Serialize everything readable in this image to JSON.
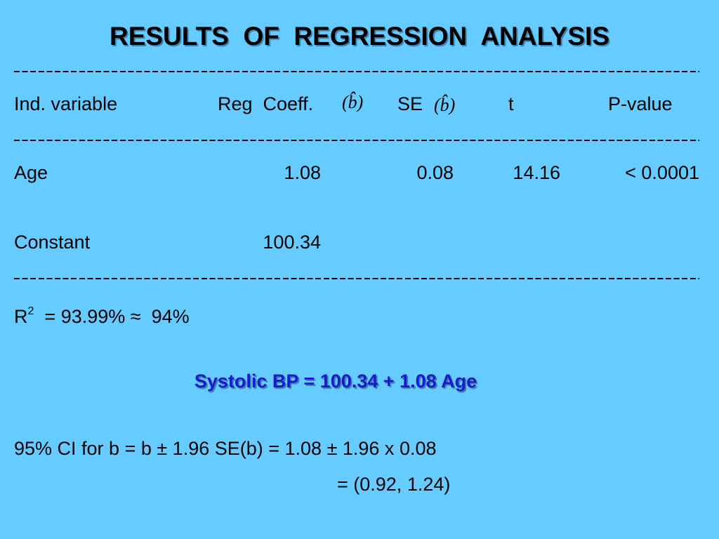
{
  "title": "RESULTS  OF  REGRESSION  ANALYSIS",
  "table": {
    "header": [
      "Ind. variable",
      "Reg  Coeff.",
      "(b̂)",
      "SE",
      "(b̂)",
      "t",
      "P-value"
    ],
    "rows": [
      [
        "Age",
        "1.08",
        "0.08",
        "14.16",
        "< 0.0001"
      ],
      [
        "Constant",
        "100.34"
      ]
    ]
  },
  "r_squared": {
    "label": "R",
    "sup": "2",
    "text": "= 93.99% ≈  94%"
  },
  "equation": "Systolic BP = 100.34 + 1.08 Age",
  "ci": {
    "line1": "95% CI for b = b ± 1.96 SE(b) = 1.08 ± 1.96 x 0.08",
    "line2": "= (0.92, 1.24)"
  }
}
